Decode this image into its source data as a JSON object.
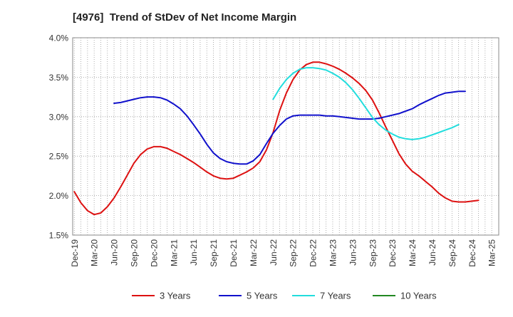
{
  "chart_data": {
    "type": "line",
    "title": "[4976]  Trend of StDev of Net Income Margin",
    "xlabel": "",
    "ylabel": "",
    "ylim": [
      1.5,
      4.0
    ],
    "y_ticks": [
      1.5,
      2.0,
      2.5,
      3.0,
      3.5,
      4.0
    ],
    "y_tick_labels": [
      "1.5%",
      "2.0%",
      "2.5%",
      "3.0%",
      "3.5%",
      "4.0%"
    ],
    "x_tick_labels": [
      "Dec-19",
      "Mar-20",
      "Jun-20",
      "Sep-20",
      "Dec-20",
      "Mar-21",
      "Jun-21",
      "Sep-21",
      "Dec-21",
      "Mar-22",
      "Jun-22",
      "Sep-22",
      "Dec-22",
      "Mar-23",
      "Jun-23",
      "Sep-23",
      "Dec-23",
      "Mar-24",
      "Jun-24",
      "Sep-24",
      "Dec-24",
      "Mar-25"
    ],
    "x_months": [
      "Dec-19",
      "Jan-20",
      "Feb-20",
      "Mar-20",
      "Apr-20",
      "May-20",
      "Jun-20",
      "Jul-20",
      "Aug-20",
      "Sep-20",
      "Oct-20",
      "Nov-20",
      "Dec-20",
      "Jan-21",
      "Feb-21",
      "Mar-21",
      "Apr-21",
      "May-21",
      "Jun-21",
      "Jul-21",
      "Aug-21",
      "Sep-21",
      "Oct-21",
      "Nov-21",
      "Dec-21",
      "Jan-22",
      "Feb-22",
      "Mar-22",
      "Apr-22",
      "May-22",
      "Jun-22",
      "Jul-22",
      "Aug-22",
      "Sep-22",
      "Oct-22",
      "Nov-22",
      "Dec-22",
      "Jan-23",
      "Feb-23",
      "Mar-23",
      "Apr-23",
      "May-23",
      "Jun-23",
      "Jul-23",
      "Aug-23",
      "Sep-23",
      "Oct-23",
      "Nov-23",
      "Dec-23",
      "Jan-24",
      "Feb-24",
      "Mar-24",
      "Apr-24",
      "May-24",
      "Jun-24",
      "Jul-24",
      "Aug-24",
      "Sep-24",
      "Oct-24",
      "Nov-24",
      "Dec-24",
      "Jan-25",
      "Feb-25",
      "Mar-25"
    ],
    "grid": true,
    "legend_position": "bottom",
    "series": [
      {
        "name": "3 Years",
        "color": "#dd1111",
        "values": [
          2.05,
          1.91,
          1.81,
          1.76,
          1.78,
          1.86,
          1.97,
          2.11,
          2.26,
          2.41,
          2.52,
          2.59,
          2.62,
          2.62,
          2.6,
          2.56,
          2.52,
          2.47,
          2.42,
          2.36,
          2.3,
          2.25,
          2.22,
          2.21,
          2.22,
          2.26,
          2.3,
          2.35,
          2.43,
          2.58,
          2.8,
          3.08,
          3.3,
          3.47,
          3.59,
          3.66,
          3.69,
          3.69,
          3.67,
          3.64,
          3.6,
          3.55,
          3.49,
          3.42,
          3.33,
          3.21,
          3.05,
          2.87,
          2.7,
          2.53,
          2.4,
          2.31,
          2.25,
          2.18,
          2.11,
          2.03,
          1.97,
          1.93,
          1.92,
          1.92,
          1.93,
          1.94,
          null,
          null
        ]
      },
      {
        "name": "5 Years",
        "color": "#1111cc",
        "values": [
          null,
          null,
          null,
          null,
          null,
          null,
          3.17,
          3.18,
          3.2,
          3.22,
          3.24,
          3.25,
          3.25,
          3.24,
          3.21,
          3.16,
          3.1,
          3.01,
          2.9,
          2.78,
          2.65,
          2.54,
          2.47,
          2.43,
          2.41,
          2.4,
          2.4,
          2.44,
          2.52,
          2.66,
          2.79,
          2.89,
          2.97,
          3.01,
          3.02,
          3.02,
          3.02,
          3.02,
          3.01,
          3.01,
          3.0,
          2.99,
          2.98,
          2.97,
          2.97,
          2.97,
          2.98,
          3.0,
          3.02,
          3.04,
          3.07,
          3.1,
          3.15,
          3.19,
          3.23,
          3.27,
          3.3,
          3.31,
          3.32,
          3.32,
          null,
          null,
          null,
          null
        ]
      },
      {
        "name": "7 Years",
        "color": "#22dddd",
        "values": [
          null,
          null,
          null,
          null,
          null,
          null,
          null,
          null,
          null,
          null,
          null,
          null,
          null,
          null,
          null,
          null,
          null,
          null,
          null,
          null,
          null,
          null,
          null,
          null,
          null,
          null,
          null,
          null,
          null,
          null,
          3.22,
          3.36,
          3.47,
          3.55,
          3.6,
          3.62,
          3.62,
          3.61,
          3.59,
          3.55,
          3.5,
          3.43,
          3.34,
          3.23,
          3.11,
          2.99,
          2.9,
          2.83,
          2.78,
          2.74,
          2.72,
          2.71,
          2.72,
          2.74,
          2.77,
          2.8,
          2.83,
          2.86,
          2.9,
          null,
          null,
          null,
          null,
          null
        ]
      },
      {
        "name": "10 Years",
        "color": "#228822",
        "values": []
      }
    ]
  }
}
